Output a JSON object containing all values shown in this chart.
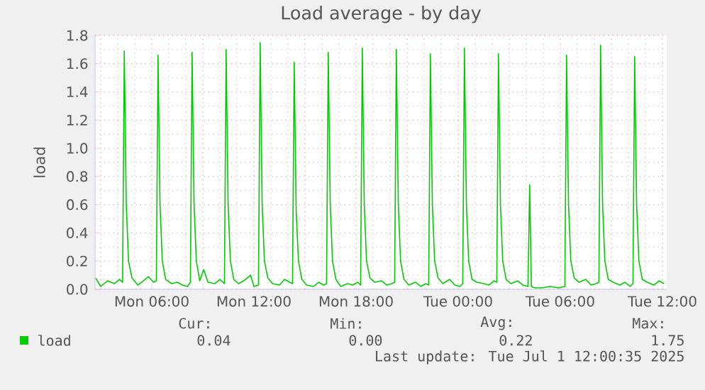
{
  "chart_data": {
    "type": "line",
    "title": "Load average - by day",
    "ylabel": "load",
    "x": [
      "2025-06-30T02:42",
      "2025-06-30T03:00",
      "2025-06-30T03:24",
      "2025-06-30T03:48",
      "2025-06-30T04:06",
      "2025-06-30T04:17",
      "2025-06-30T04:23",
      "2025-06-30T04:30",
      "2025-06-30T04:38",
      "2025-06-30T04:50",
      "2025-06-30T05:11",
      "2025-06-30T05:30",
      "2025-06-30T05:48",
      "2025-06-30T06:06",
      "2025-06-30T06:16",
      "2025-06-30T06:22",
      "2025-06-30T06:29",
      "2025-06-30T06:37",
      "2025-06-30T06:49",
      "2025-06-30T07:10",
      "2025-06-30T07:30",
      "2025-06-30T07:48",
      "2025-06-30T08:06",
      "2025-06-30T08:16",
      "2025-06-30T08:22",
      "2025-06-30T08:29",
      "2025-06-30T08:37",
      "2025-06-30T08:49",
      "2025-06-30T09:03",
      "2025-06-30T09:18",
      "2025-06-30T09:42",
      "2025-06-30T10:00",
      "2025-06-30T10:16",
      "2025-06-30T10:22",
      "2025-06-30T10:29",
      "2025-06-30T10:37",
      "2025-06-30T10:49",
      "2025-06-30T11:06",
      "2025-06-30T11:24",
      "2025-06-30T11:48",
      "2025-06-30T12:00",
      "2025-06-30T12:16",
      "2025-06-30T12:22",
      "2025-06-30T12:29",
      "2025-06-30T12:37",
      "2025-06-30T12:49",
      "2025-06-30T13:06",
      "2025-06-30T13:30",
      "2025-06-30T13:48",
      "2025-06-30T14:06",
      "2025-06-30T14:16",
      "2025-06-30T14:22",
      "2025-06-30T14:29",
      "2025-06-30T14:37",
      "2025-06-30T14:49",
      "2025-06-30T15:06",
      "2025-06-30T15:30",
      "2025-06-30T15:48",
      "2025-06-30T16:06",
      "2025-06-30T16:16",
      "2025-06-30T16:22",
      "2025-06-30T16:29",
      "2025-06-30T16:37",
      "2025-06-30T16:49",
      "2025-06-30T17:06",
      "2025-06-30T17:30",
      "2025-06-30T17:48",
      "2025-06-30T18:06",
      "2025-06-30T18:16",
      "2025-06-30T18:22",
      "2025-06-30T18:29",
      "2025-06-30T18:37",
      "2025-06-30T18:49",
      "2025-06-30T19:06",
      "2025-06-30T19:30",
      "2025-06-30T19:48",
      "2025-06-30T20:06",
      "2025-06-30T20:16",
      "2025-06-30T20:22",
      "2025-06-30T20:29",
      "2025-06-30T20:37",
      "2025-06-30T20:49",
      "2025-06-30T21:06",
      "2025-06-30T21:30",
      "2025-06-30T21:48",
      "2025-06-30T22:06",
      "2025-06-30T22:16",
      "2025-06-30T22:22",
      "2025-06-30T22:29",
      "2025-06-30T22:37",
      "2025-06-30T22:49",
      "2025-06-30T23:06",
      "2025-06-30T23:30",
      "2025-06-30T23:48",
      "2025-07-01T00:06",
      "2025-07-01T00:16",
      "2025-07-01T00:22",
      "2025-07-01T00:29",
      "2025-07-01T00:37",
      "2025-07-01T00:49",
      "2025-07-01T01:06",
      "2025-07-01T01:30",
      "2025-07-01T01:48",
      "2025-07-01T02:06",
      "2025-07-01T02:16",
      "2025-07-01T02:22",
      "2025-07-01T02:29",
      "2025-07-01T02:37",
      "2025-07-01T02:49",
      "2025-07-01T03:06",
      "2025-07-01T03:30",
      "2025-07-01T03:48",
      "2025-07-01T04:06",
      "2025-07-01T04:12",
      "2025-07-01T04:18",
      "2025-07-01T04:30",
      "2025-07-01T04:54",
      "2025-07-01T05:24",
      "2025-07-01T05:54",
      "2025-07-01T06:16",
      "2025-07-01T06:22",
      "2025-07-01T06:29",
      "2025-07-01T06:37",
      "2025-07-01T06:49",
      "2025-07-01T07:06",
      "2025-07-01T07:30",
      "2025-07-01T07:48",
      "2025-07-01T08:06",
      "2025-07-01T08:16",
      "2025-07-01T08:22",
      "2025-07-01T08:29",
      "2025-07-01T08:37",
      "2025-07-01T08:49",
      "2025-07-01T09:06",
      "2025-07-01T09:30",
      "2025-07-01T09:48",
      "2025-07-01T10:06",
      "2025-07-01T10:16",
      "2025-07-01T10:22",
      "2025-07-01T10:29",
      "2025-07-01T10:37",
      "2025-07-01T10:49",
      "2025-07-01T11:06",
      "2025-07-01T11:30",
      "2025-07-01T11:48",
      "2025-07-01T12:06"
    ],
    "series": [
      {
        "name": "load",
        "color": "#00cc00",
        "values": [
          0.08,
          0.02,
          0.06,
          0.04,
          0.07,
          0.05,
          1.69,
          0.6,
          0.2,
          0.08,
          0.03,
          0.06,
          0.09,
          0.05,
          0.06,
          1.66,
          0.6,
          0.2,
          0.07,
          0.04,
          0.05,
          0.03,
          0.02,
          0.05,
          1.68,
          0.6,
          0.2,
          0.06,
          0.14,
          0.05,
          0.04,
          0.07,
          0.04,
          1.7,
          0.6,
          0.2,
          0.07,
          0.04,
          0.06,
          0.1,
          0.02,
          0.03,
          1.75,
          0.6,
          0.2,
          0.08,
          0.04,
          0.03,
          0.07,
          0.05,
          0.04,
          1.61,
          0.55,
          0.2,
          0.07,
          0.03,
          0.02,
          0.05,
          0.03,
          0.04,
          1.68,
          0.6,
          0.2,
          0.07,
          0.02,
          0.04,
          0.03,
          0.05,
          0.03,
          1.71,
          0.6,
          0.2,
          0.08,
          0.05,
          0.06,
          0.03,
          0.04,
          0.05,
          1.7,
          0.6,
          0.2,
          0.07,
          0.03,
          0.05,
          0.02,
          0.04,
          0.03,
          1.67,
          0.6,
          0.2,
          0.08,
          0.04,
          0.07,
          0.03,
          0.02,
          0.04,
          1.71,
          0.6,
          0.2,
          0.07,
          0.05,
          0.04,
          0.03,
          0.06,
          0.05,
          1.67,
          0.6,
          0.2,
          0.07,
          0.04,
          0.06,
          0.03,
          0.02,
          0.74,
          0.02,
          0.01,
          0.01,
          0.02,
          0.01,
          0.02,
          1.66,
          0.6,
          0.2,
          0.08,
          0.05,
          0.07,
          0.03,
          0.04,
          0.05,
          1.73,
          0.6,
          0.2,
          0.07,
          0.05,
          0.03,
          0.05,
          0.02,
          0.04,
          1.65,
          0.6,
          0.2,
          0.07,
          0.05,
          0.03,
          0.06,
          0.04
        ]
      }
    ],
    "xlim": [
      "2025-06-30T02:40",
      "2025-07-01T12:15"
    ],
    "xticks": [
      {
        "value": "2025-06-30T03:00",
        "label": null
      },
      {
        "value": "2025-06-30T06:00",
        "label": "Mon 06:00"
      },
      {
        "value": "2025-06-30T09:00",
        "label": null
      },
      {
        "value": "2025-06-30T12:00",
        "label": "Mon 12:00"
      },
      {
        "value": "2025-06-30T15:00",
        "label": null
      },
      {
        "value": "2025-06-30T18:00",
        "label": "Mon 18:00"
      },
      {
        "value": "2025-06-30T21:00",
        "label": null
      },
      {
        "value": "2025-07-01T00:00",
        "label": "Tue 00:00"
      },
      {
        "value": "2025-07-01T03:00",
        "label": null
      },
      {
        "value": "2025-07-01T06:00",
        "label": "Tue 06:00"
      },
      {
        "value": "2025-07-01T09:00",
        "label": null
      },
      {
        "value": "2025-07-01T12:00",
        "label": "Tue 12:00"
      }
    ],
    "ylim": [
      0,
      1.8
    ],
    "yticks": [
      {
        "value": 0,
        "label": "0.0"
      },
      {
        "value": 0.2,
        "label": "0.2"
      },
      {
        "value": 0.4,
        "label": "0.4"
      },
      {
        "value": 0.6,
        "label": "0.6"
      },
      {
        "value": 0.8,
        "label": "0.8"
      },
      {
        "value": 1.0,
        "label": "1.0"
      },
      {
        "value": 1.2,
        "label": "1.2"
      },
      {
        "value": 1.4,
        "label": "1.4"
      },
      {
        "value": 1.6,
        "label": "1.6"
      },
      {
        "value": 1.8,
        "label": "1.8"
      }
    ],
    "grid": true,
    "legend": "bottom",
    "marker": "none",
    "line_style": "solid",
    "annotations": [
      "Cur:",
      "Min:",
      "Avg:",
      "Max:",
      "0.04",
      "0.00",
      "0.22",
      "1.75",
      "Last update: Tue Jul  1 12:00:35 2025"
    ]
  }
}
